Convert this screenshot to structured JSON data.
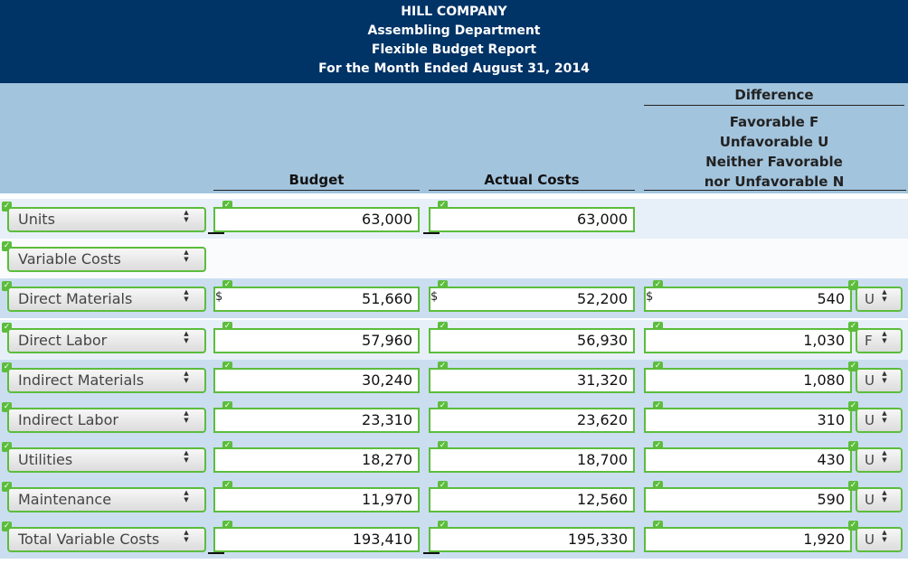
{
  "title": {
    "line1": "HILL COMPANY",
    "line2": "Assembling Department",
    "line3": "Flexible Budget Report",
    "line4": "For the Month Ended August 31, 2014"
  },
  "headers": {
    "budget": "Budget",
    "actual": "Actual Costs",
    "difference": "Difference",
    "legend": [
      "Favorable F",
      "Unfavorable U",
      "Neither Favorable",
      "nor Unfavorable N"
    ]
  },
  "currency_symbol": "$",
  "rows": [
    {
      "label": "Units",
      "budget": "63,000",
      "actual": "63,000",
      "difference": null,
      "fu": null,
      "dollar": false
    },
    {
      "label": "Variable Costs",
      "budget": null,
      "actual": null,
      "difference": null,
      "fu": null,
      "dollar": false
    },
    {
      "label": "Direct Materials",
      "budget": "51,660",
      "actual": "52,200",
      "difference": "540",
      "fu": "U",
      "dollar": true
    },
    {
      "label": "Direct Labor",
      "budget": "57,960",
      "actual": "56,930",
      "difference": "1,030",
      "fu": "F",
      "dollar": false
    },
    {
      "label": "Indirect Materials",
      "budget": "30,240",
      "actual": "31,320",
      "difference": "1,080",
      "fu": "U",
      "dollar": false
    },
    {
      "label": "Indirect Labor",
      "budget": "23,310",
      "actual": "23,620",
      "difference": "310",
      "fu": "U",
      "dollar": false
    },
    {
      "label": "Utilities",
      "budget": "18,270",
      "actual": "18,700",
      "difference": "430",
      "fu": "U",
      "dollar": false
    },
    {
      "label": "Maintenance",
      "budget": "11,970",
      "actual": "12,560",
      "difference": "590",
      "fu": "U",
      "dollar": false
    },
    {
      "label": "Total Variable Costs",
      "budget": "193,410",
      "actual": "195,330",
      "difference": "1,920",
      "fu": "U",
      "dollar": false
    }
  ]
}
